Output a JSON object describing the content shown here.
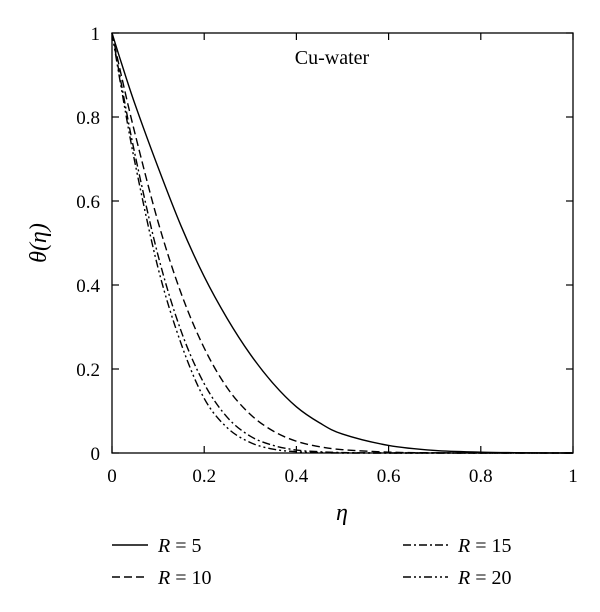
{
  "chart_data": {
    "type": "line",
    "title": "",
    "xlabel": "η",
    "ylabel": "θ(η)",
    "xlim": [
      0,
      1
    ],
    "ylim": [
      0,
      1
    ],
    "x_ticks": [
      0,
      0.2,
      0.4,
      0.6,
      0.8,
      1
    ],
    "y_ticks": [
      0,
      0.2,
      0.4,
      0.6,
      0.8,
      1
    ],
    "x_tick_labels": [
      "0",
      "0.2",
      "0.4",
      "0.6",
      "0.8",
      "1"
    ],
    "y_tick_labels": [
      "0",
      "0.2",
      "0.4",
      "0.6",
      "0.8",
      "1"
    ],
    "grid": false,
    "legend_position": "bottom",
    "annotation": "Cu-water",
    "x": [
      0,
      0.02,
      0.05,
      0.1,
      0.15,
      0.2,
      0.25,
      0.3,
      0.35,
      0.4,
      0.45,
      0.5,
      0.6,
      0.7,
      0.8,
      0.9,
      1.0
    ],
    "series": [
      {
        "name": "R = 5",
        "style": "solid",
        "values": [
          1.0,
          0.93,
          0.83,
          0.68,
          0.54,
          0.42,
          0.32,
          0.235,
          0.165,
          0.11,
          0.072,
          0.045,
          0.018,
          0.006,
          0.002,
          0.0005,
          0.0
        ]
      },
      {
        "name": "R = 10",
        "style": "dashed",
        "values": [
          1.0,
          0.9,
          0.76,
          0.55,
          0.38,
          0.25,
          0.155,
          0.092,
          0.052,
          0.028,
          0.015,
          0.008,
          0.002,
          0.0005,
          0.0,
          0.0,
          0.0
        ]
      },
      {
        "name": "R = 15",
        "style": "dash-dot",
        "values": [
          1.0,
          0.88,
          0.71,
          0.47,
          0.29,
          0.165,
          0.085,
          0.04,
          0.018,
          0.007,
          0.003,
          0.001,
          0.0,
          0.0,
          0.0,
          0.0,
          0.0
        ]
      },
      {
        "name": "R = 20",
        "style": "dash-dot-dot",
        "values": [
          1.0,
          0.87,
          0.69,
          0.44,
          0.26,
          0.13,
          0.06,
          0.025,
          0.009,
          0.003,
          0.001,
          0.0,
          0.0,
          0.0,
          0.0,
          0.0,
          0.0
        ]
      }
    ]
  },
  "legend": {
    "items": [
      {
        "var": "R",
        "rest": " = 5"
      },
      {
        "var": "R",
        "rest": " = 10"
      },
      {
        "var": "R",
        "rest": " = 15"
      },
      {
        "var": "R",
        "rest": " = 20"
      }
    ]
  }
}
